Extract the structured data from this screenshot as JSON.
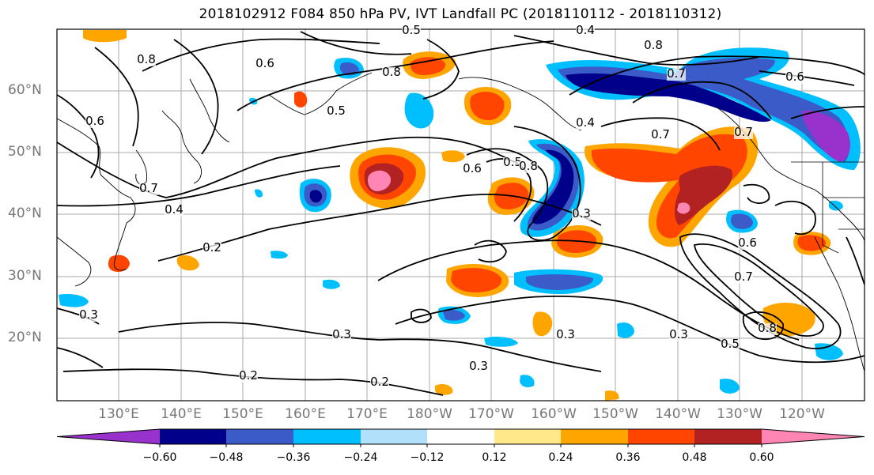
{
  "title": "2018102912 F084 850 hPa PV, IVT Landfall PC (2018110112 - 2018110312)",
  "map": {
    "lat_labels": [
      "60°N",
      "50°N",
      "40°N",
      "30°N",
      "20°N"
    ],
    "lon_labels": [
      "130°E",
      "140°E",
      "150°E",
      "160°E",
      "170°E",
      "180°W",
      "170°W",
      "160°W",
      "150°W",
      "140°W",
      "130°W",
      "120°W"
    ],
    "contour_labels": [
      "0.5",
      "0.4",
      "0.8",
      "0.6",
      "0.8",
      "0.7",
      "0.6",
      "0.8",
      "0.5",
      "0.4",
      "0.7",
      "0.5",
      "0.7",
      "0.8",
      "0.6",
      "0.3",
      "0.4",
      "0.6",
      "0.2",
      "0.3",
      "0.7",
      "0.8",
      "0.3",
      "0.5",
      "0.3",
      "0.3",
      "0.2",
      "0.2",
      "0.3",
      "0.6",
      "0.7"
    ]
  },
  "colorbar": {
    "ticks": [
      "−0.60",
      "−0.48",
      "−0.36",
      "−0.24",
      "−0.12",
      "0.12",
      "0.24",
      "0.36",
      "0.48",
      "0.60"
    ],
    "colors": [
      "#9932cc",
      "#00008b",
      "#3a5bc8",
      "#00bfff",
      "#b0e0fa",
      "#ffffff",
      "#ffe88a",
      "#ffa500",
      "#ff4500",
      "#b22222",
      "#ff85b4"
    ]
  }
}
